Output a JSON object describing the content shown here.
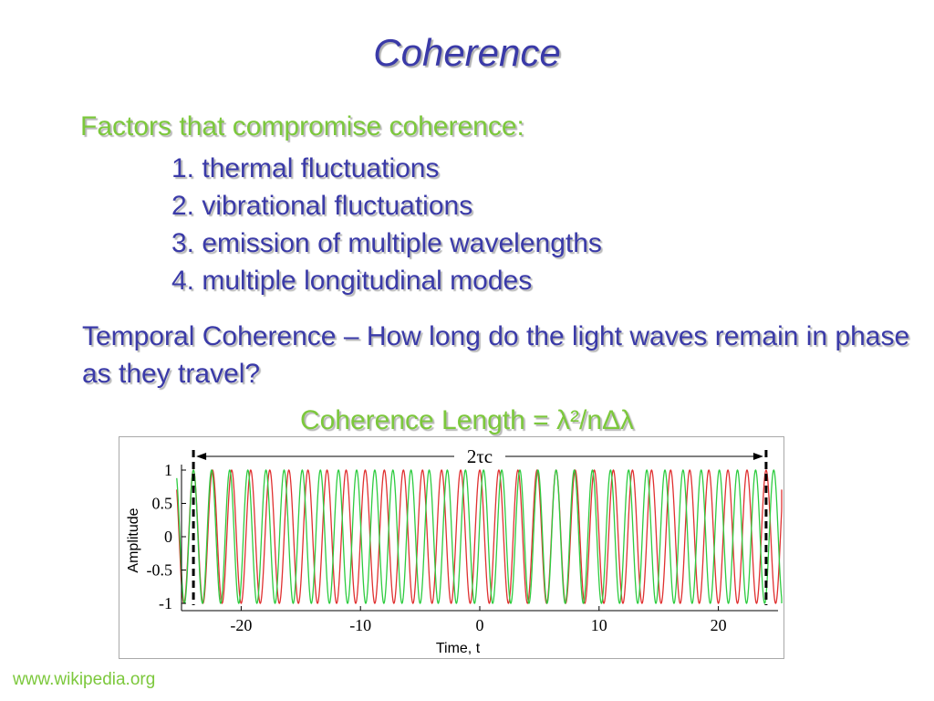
{
  "slide": {
    "title": "Coherence",
    "factors_heading": "Factors that compromise coherence:",
    "factors": [
      "1. thermal fluctuations",
      "2. vibrational fluctuations",
      "3. emission of multiple wavelengths",
      "4. multiple longitudinal modes"
    ],
    "temporal_text": "Temporal Coherence – How long do the light waves remain in phase as they travel?",
    "coherence_length": "Coherence Length = λ²/nΔλ",
    "source": "www.wikipedia.org"
  },
  "colors": {
    "title_blue": "#3a3aa8",
    "accent_green": "#7cc83c",
    "wave_red": "#e03030",
    "wave_green": "#2ecc40"
  },
  "chart_data": {
    "type": "line",
    "xlabel": "Time, t",
    "ylabel": "Amplitude",
    "xlim": [
      -25,
      25
    ],
    "ylim": [
      -1,
      1
    ],
    "xticks": [
      -20,
      -10,
      0,
      10,
      20
    ],
    "yticks": [
      1,
      0.5,
      0,
      -0.5,
      -1
    ],
    "ytick_labels": [
      "1",
      "0.5",
      "0",
      "-0.5",
      "-1"
    ],
    "annotation": "2τc",
    "annotation_span": [
      -24,
      24
    ],
    "series": [
      {
        "color": "#e03030",
        "period": 1.6,
        "phase_at": -24
      },
      {
        "color": "#2ecc40",
        "period": 1.52,
        "phase_at": -24
      }
    ],
    "dashed_lines_x": [
      -24,
      24
    ],
    "grid": false
  }
}
